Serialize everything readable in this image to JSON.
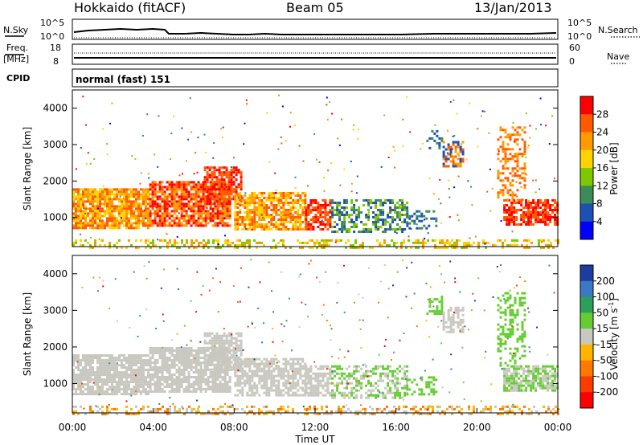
{
  "header": {
    "station": "Hokkaido (fitACF)",
    "beam": "Beam 05",
    "date": "13/Jan/2013"
  },
  "top_panels": {
    "nsky_label": "N.Sky",
    "nsky_ticks_left": [
      "10^5",
      "10^0"
    ],
    "nsky_ticks_right": [
      "10^5",
      "10^0"
    ],
    "nsearch_label": "N.Search",
    "freq_label_line1": "Freq.",
    "freq_label_line2": "[MHz]",
    "freq_ticks": [
      "18",
      "8"
    ],
    "nave_ticks": [
      "60",
      "0"
    ],
    "nave_label": "Nave",
    "cpid_label": "CPID",
    "cpid_value": "normal (fast) 151"
  },
  "chart_data": [
    {
      "type": "heatmap",
      "name": "power",
      "ylabel": "Slant Range [km]",
      "yticks": [
        "1000",
        "2000",
        "3000",
        "4000"
      ],
      "colorbar_label": "Power [dB]",
      "colorbar_ticks": [
        "28",
        "24",
        "20",
        "16",
        "12",
        "8",
        "4"
      ],
      "colorbar_colors": [
        "#ff0000",
        "#ff5a00",
        "#ff9a00",
        "#ffd200",
        "#7fc800",
        "#3c8c5a",
        "#1e50b4",
        "#0000ff"
      ]
    },
    {
      "type": "heatmap",
      "name": "velocity",
      "ylabel": "Slant Range [km]",
      "yticks": [
        "1000",
        "2000",
        "3000",
        "4000"
      ],
      "xticks": [
        "00:00",
        "04:00",
        "08:00",
        "12:00",
        "16:00",
        "20:00",
        "00:00"
      ],
      "xlabel": "Time UT",
      "colorbar_label": "Velocity [m s",
      "colorbar_label_sup": "-1",
      "colorbar_label_end": "]",
      "colorbar_ticks": [
        "200",
        "100",
        "50",
        "15",
        "-15",
        "-50",
        "-100",
        "-200"
      ],
      "colorbar_colors": [
        "#1e3ca0",
        "#3c78c8",
        "#2aa05a",
        "#66cc33",
        "#c8c8c0",
        "#ffb400",
        "#ff7800",
        "#ff3c00",
        "#ff0000"
      ]
    }
  ]
}
